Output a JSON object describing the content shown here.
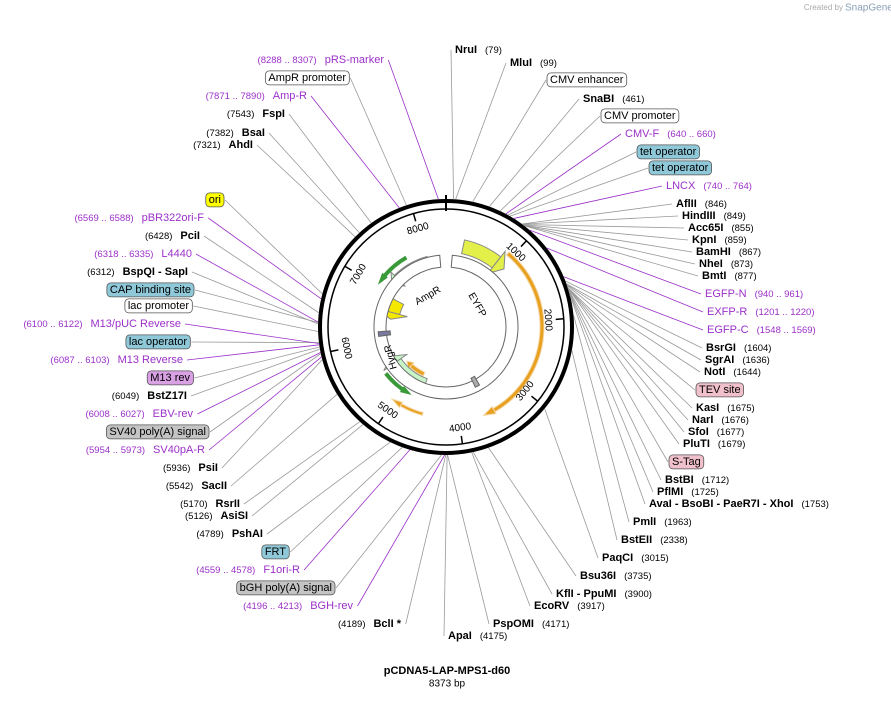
{
  "header": {
    "credit": "Created by",
    "brand": "SnapGene"
  },
  "plasmid": {
    "name": "pCDNA5-LAP-MPS1-d60",
    "length": "8373 bp",
    "ruler": [
      "1000",
      "2000",
      "3000",
      "4000",
      "5000",
      "6000",
      "7000",
      "8000"
    ],
    "features": [
      "AmpR",
      "EYFP",
      "HygR"
    ]
  },
  "labels": [
    {
      "kind": "enzyme",
      "name": "NruI",
      "site": "(79)"
    },
    {
      "kind": "enzyme",
      "name": "MluI",
      "site": "(99)"
    },
    {
      "kind": "feature",
      "name": "CMV enhancer",
      "color": "#ffffff"
    },
    {
      "kind": "enzyme",
      "name": "SnaBI",
      "site": "(461)"
    },
    {
      "kind": "feature",
      "name": "CMV promoter",
      "color": "#ffffff"
    },
    {
      "kind": "primer",
      "name": "CMV-F",
      "site": "(640 .. 660)"
    },
    {
      "kind": "feature",
      "name": "tet operator",
      "color": "#8fc8d8"
    },
    {
      "kind": "feature",
      "name": "tet operator",
      "color": "#8fc8d8"
    },
    {
      "kind": "primer",
      "name": "LNCX",
      "site": "(740 .. 764)"
    },
    {
      "kind": "enzyme",
      "name": "AflII",
      "site": "(846)"
    },
    {
      "kind": "enzyme",
      "name": "HindIII",
      "site": "(849)"
    },
    {
      "kind": "enzyme",
      "name": "Acc65I",
      "site": "(855)"
    },
    {
      "kind": "enzyme",
      "name": "KpnI",
      "site": "(859)"
    },
    {
      "kind": "enzyme",
      "name": "BamHI",
      "site": "(867)"
    },
    {
      "kind": "enzyme",
      "name": "NheI",
      "site": "(873)"
    },
    {
      "kind": "enzyme",
      "name": "BmtI",
      "site": "(877)"
    },
    {
      "kind": "primer",
      "name": "EGFP-N",
      "site": "(940 .. 961)"
    },
    {
      "kind": "primer",
      "name": "EXFP-R",
      "site": "(1201 .. 1220)"
    },
    {
      "kind": "primer",
      "name": "EGFP-C",
      "site": "(1548 .. 1569)"
    },
    {
      "kind": "enzyme",
      "name": "BsrGI",
      "site": "(1604)"
    },
    {
      "kind": "enzyme",
      "name": "SgrAI",
      "site": "(1636)"
    },
    {
      "kind": "enzyme",
      "name": "NotI",
      "site": "(1644)"
    },
    {
      "kind": "feature",
      "name": "TEV site",
      "color": "#f0c0cc"
    },
    {
      "kind": "enzyme",
      "name": "KasI",
      "site": "(1675)"
    },
    {
      "kind": "enzyme",
      "name": "NarI",
      "site": "(1676)"
    },
    {
      "kind": "enzyme",
      "name": "SfoI",
      "site": "(1677)"
    },
    {
      "kind": "enzyme",
      "name": "PluTI",
      "site": "(1679)"
    },
    {
      "kind": "feature",
      "name": "S-Tag",
      "color": "#f0c0cc"
    },
    {
      "kind": "enzyme",
      "name": "BstBI",
      "site": "(1712)"
    },
    {
      "kind": "enzyme",
      "name": "PflMI",
      "site": "(1725)"
    },
    {
      "kind": "enzyme",
      "name": "AvaI   - BsoBI   - PaeR7I   - XhoI",
      "site": "(1753)"
    },
    {
      "kind": "enzyme",
      "name": "PmlI",
      "site": "(1963)"
    },
    {
      "kind": "enzyme",
      "name": "BstEII",
      "site": "(2338)"
    },
    {
      "kind": "enzyme",
      "name": "PaqCI",
      "site": "(3015)"
    },
    {
      "kind": "enzyme",
      "name": "Bsu36I",
      "site": "(3735)"
    },
    {
      "kind": "enzyme",
      "name": "KflI   - PpuMI",
      "site": "(3900)"
    },
    {
      "kind": "enzyme",
      "name": "EcoRV",
      "site": "(3917)"
    },
    {
      "kind": "enzyme",
      "name": "PspOMI",
      "site": "(4171)"
    },
    {
      "kind": "enzyme",
      "name": "ApaI",
      "site": "(4175)"
    },
    {
      "kind": "enzyme",
      "name": "BclI *",
      "site": "(4189)"
    },
    {
      "kind": "primer",
      "name": "BGH-rev",
      "site": "(4196 .. 4213)"
    },
    {
      "kind": "feature",
      "name": "bGH poly(A) signal",
      "color": "#c4c4c4"
    },
    {
      "kind": "primer",
      "name": "F1ori-R",
      "site": "(4559 .. 4578)"
    },
    {
      "kind": "feature",
      "name": "FRT",
      "color": "#8fc8d8"
    },
    {
      "kind": "enzyme",
      "name": "PshAI",
      "site": "(4789)"
    },
    {
      "kind": "enzyme",
      "name": "AsiSI",
      "site": "(5126)"
    },
    {
      "kind": "enzyme",
      "name": "RsrII",
      "site": "(5170)"
    },
    {
      "kind": "enzyme",
      "name": "SacII",
      "site": "(5542)"
    },
    {
      "kind": "enzyme",
      "name": "PsiI",
      "site": "(5936)"
    },
    {
      "kind": "primer",
      "name": "SV40pA-R",
      "site": "(5954 .. 5973)"
    },
    {
      "kind": "feature",
      "name": "SV40 poly(A) signal",
      "color": "#c4c4c4"
    },
    {
      "kind": "primer",
      "name": "EBV-rev",
      "site": "(6008 .. 6027)"
    },
    {
      "kind": "enzyme",
      "name": "BstZ17I",
      "site": "(6049)"
    },
    {
      "kind": "feature",
      "name": "M13 rev",
      "color": "#d9a0e4"
    },
    {
      "kind": "primer",
      "name": "M13 Reverse",
      "site": "(6087 .. 6103)"
    },
    {
      "kind": "feature",
      "name": "lac operator",
      "color": "#8fc8d8"
    },
    {
      "kind": "primer",
      "name": "M13/pUC Reverse",
      "site": "(6100 .. 6122)"
    },
    {
      "kind": "feature",
      "name": "lac promoter",
      "color": "#ffffff"
    },
    {
      "kind": "feature",
      "name": "CAP binding site",
      "color": "#8fc8d8"
    },
    {
      "kind": "enzyme",
      "name": "BspQI   - SapI",
      "site": "(6312)"
    },
    {
      "kind": "primer",
      "name": "L4440",
      "site": "(6318 .. 6335)"
    },
    {
      "kind": "enzyme",
      "name": "PciI",
      "site": "(6428)"
    },
    {
      "kind": "primer",
      "name": "pBR322ori-F",
      "site": "(6569 .. 6588)"
    },
    {
      "kind": "feature",
      "name": "ori",
      "color": "#ffff00"
    },
    {
      "kind": "enzyme",
      "name": "AhdI",
      "site": "(7321)"
    },
    {
      "kind": "enzyme",
      "name": "BsaI",
      "site": "(7382)"
    },
    {
      "kind": "enzyme",
      "name": "FspI",
      "site": "(7543)"
    },
    {
      "kind": "primer",
      "name": "Amp-R",
      "site": "(7871 .. 7890)"
    },
    {
      "kind": "feature",
      "name": "AmpR promoter",
      "color": "#ffffff"
    },
    {
      "kind": "primer",
      "name": "pRS-marker",
      "site": "(8288 .. 8307)"
    }
  ]
}
